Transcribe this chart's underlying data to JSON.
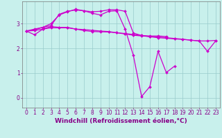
{
  "background_color": "#c8f0ec",
  "grid_color": "#99cccc",
  "line_color": "#cc00cc",
  "marker": "D",
  "markersize": 2.0,
  "linewidth": 0.9,
  "xlabel": "Windchill (Refroidissement éolien,°C)",
  "xlabel_fontsize": 6.5,
  "tick_fontsize": 5.5,
  "xlim": [
    -0.5,
    23.5
  ],
  "ylim": [
    -0.4,
    3.9
  ],
  "yticks": [
    0,
    1,
    2,
    3
  ],
  "xticks": [
    0,
    1,
    2,
    3,
    4,
    5,
    6,
    7,
    8,
    9,
    10,
    11,
    12,
    13,
    14,
    15,
    16,
    17,
    18,
    19,
    20,
    21,
    22,
    23
  ],
  "lines": [
    [
      2.7,
      2.55,
      2.78,
      2.88,
      2.85,
      2.85,
      2.78,
      2.72,
      2.68,
      2.67,
      2.66,
      2.63,
      2.6,
      2.56,
      2.52,
      2.47,
      2.43,
      2.41,
      2.38,
      2.36,
      2.33,
      2.3,
      2.3,
      2.32
    ],
    [
      2.7,
      2.75,
      2.85,
      3.0,
      3.35,
      3.48,
      3.58,
      3.52,
      3.42,
      3.35,
      3.5,
      3.52,
      2.78,
      1.72,
      0.05,
      0.45,
      1.88,
      1.02,
      1.28,
      null,
      null,
      null,
      null,
      null
    ],
    [
      2.7,
      2.78,
      2.85,
      2.92,
      3.38,
      3.5,
      3.55,
      3.52,
      3.48,
      3.5,
      3.56,
      3.56,
      3.5,
      2.62,
      2.52,
      2.5,
      2.5,
      2.48,
      null,
      null,
      null,
      null,
      null,
      null
    ],
    [
      2.7,
      2.72,
      2.78,
      2.83,
      2.83,
      2.83,
      2.78,
      2.76,
      2.73,
      2.7,
      2.68,
      2.63,
      2.58,
      2.53,
      2.5,
      2.48,
      2.46,
      2.43,
      2.4,
      2.37,
      2.33,
      2.3,
      1.88,
      2.3
    ]
  ]
}
